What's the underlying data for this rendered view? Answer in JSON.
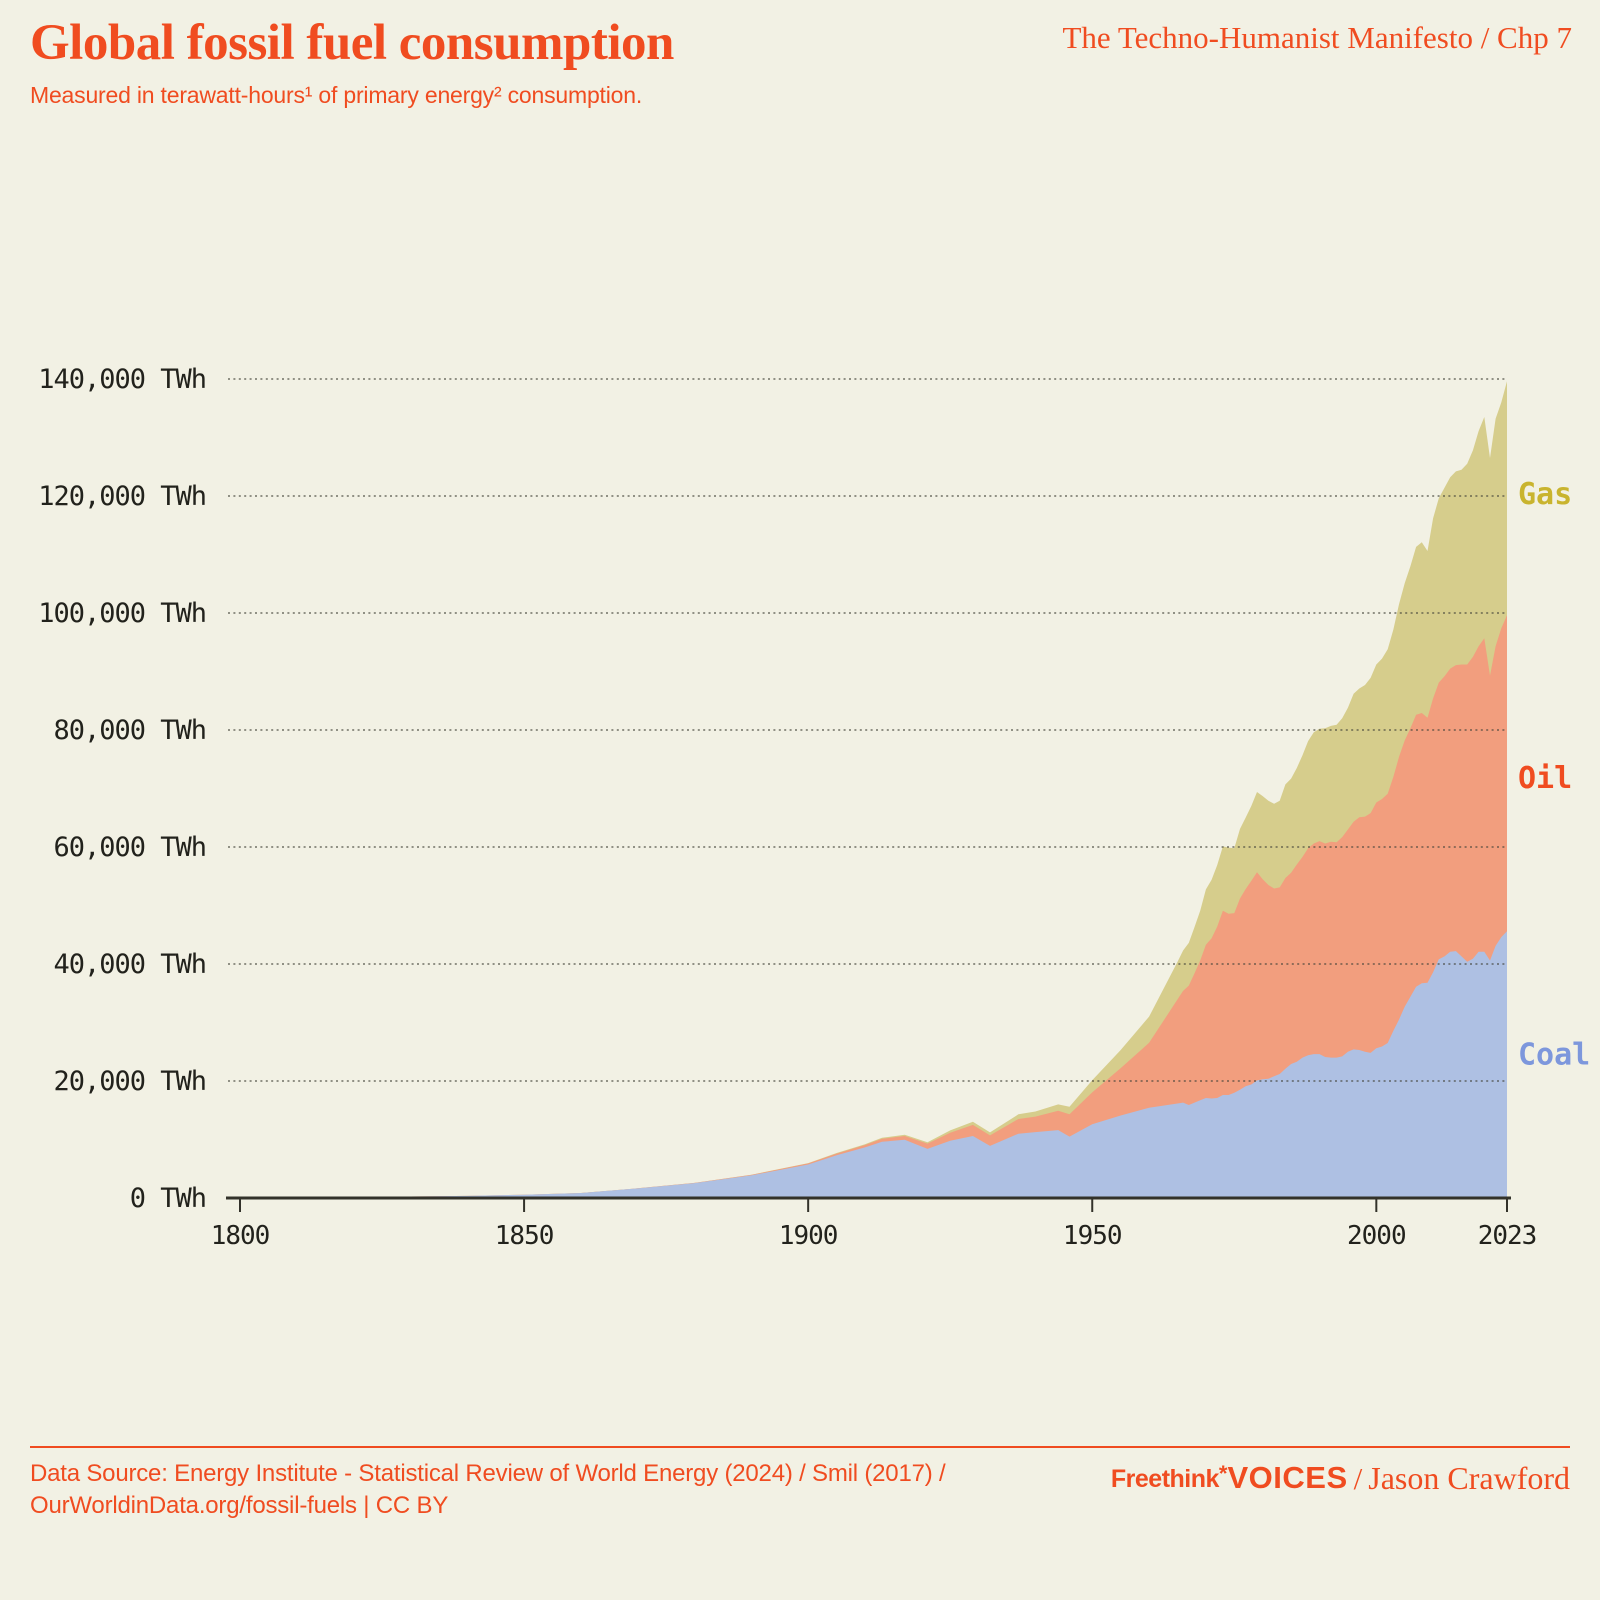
{
  "page": {
    "background_color": "#f2f1e4",
    "accent_color": "#f04c20"
  },
  "header": {
    "title": "Global fossil fuel consumption",
    "subtitle": "Measured in terawatt-hours¹ of primary energy² consumption.",
    "chapter_ref": "The Techno-Humanist Manifesto / Chp 7"
  },
  "footer": {
    "source_line1": "Data Source: Energy Institute - Statistical Review of World Energy (2024) / Smil (2017) /",
    "source_line2": "OurWorldinData.org/fossil-fuels | CC BY",
    "brand": "Freethink",
    "brand_mark": "*",
    "brand_voices": "VOICES",
    "separator": "/",
    "author": "Jason Crawford"
  },
  "chart_data": {
    "type": "area",
    "stacked": true,
    "title": "Global fossil fuel consumption",
    "unit": "TWh",
    "grid": "dotted-horizontal",
    "legend_position": "right-edge-labels",
    "x_axis": {
      "min": 1800,
      "max": 2023,
      "ticks": [
        {
          "value": 1800,
          "label": "1800"
        },
        {
          "value": 1850,
          "label": "1850"
        },
        {
          "value": 1900,
          "label": "1900"
        },
        {
          "value": 1950,
          "label": "1950"
        },
        {
          "value": 2000,
          "label": "2000"
        },
        {
          "value": 2023,
          "label": "2023"
        }
      ]
    },
    "y_axis": {
      "min": 0,
      "max": 140000,
      "ticks": [
        {
          "value": 0,
          "label": "0 TWh"
        },
        {
          "value": 20000,
          "label": "20,000 TWh"
        },
        {
          "value": 40000,
          "label": "40,000 TWh"
        },
        {
          "value": 60000,
          "label": "60,000 TWh"
        },
        {
          "value": 80000,
          "label": "80,000 TWh"
        },
        {
          "value": 100000,
          "label": "100,000 TWh"
        },
        {
          "value": 120000,
          "label": "120,000 TWh"
        },
        {
          "value": 140000,
          "label": "140,000 TWh"
        }
      ]
    },
    "axis_color": "#33322a",
    "grid_color": "#44443a",
    "tick_label_color": "#22221c",
    "years": [
      1800,
      1810,
      1820,
      1830,
      1840,
      1850,
      1860,
      1870,
      1880,
      1890,
      1900,
      1905,
      1910,
      1913,
      1917,
      1921,
      1925,
      1929,
      1932,
      1937,
      1940,
      1944,
      1946,
      1950,
      1955,
      1960,
      1965,
      1966,
      1967,
      1968,
      1969,
      1970,
      1971,
      1972,
      1973,
      1974,
      1975,
      1976,
      1977,
      1978,
      1979,
      1980,
      1981,
      1982,
      1983,
      1984,
      1985,
      1986,
      1987,
      1988,
      1989,
      1990,
      1991,
      1992,
      1993,
      1994,
      1995,
      1996,
      1997,
      1998,
      1999,
      2000,
      2001,
      2002,
      2003,
      2004,
      2005,
      2006,
      2007,
      2008,
      2009,
      2010,
      2011,
      2012,
      2013,
      2014,
      2015,
      2016,
      2017,
      2018,
      2019,
      2020,
      2021,
      2022,
      2023
    ],
    "series": [
      {
        "name": "Coal",
        "fill_color": "#aec0e3",
        "label_color": "#7d97dc",
        "label_value": 24500,
        "values": [
          97,
          128,
          153,
          264,
          356,
          569,
          851,
          1642,
          2542,
          3856,
          5728,
          7300,
          8656,
          9600,
          9950,
          8400,
          9800,
          10600,
          8900,
          11000,
          11261,
          11600,
          10500,
          12603,
          14100,
          15442,
          16151,
          16300,
          15900,
          16300,
          16700,
          17100,
          17000,
          17100,
          17600,
          17600,
          18000,
          18500,
          19100,
          19400,
          20100,
          20300,
          20400,
          20800,
          21200,
          22100,
          22900,
          23300,
          24000,
          24400,
          24600,
          24600,
          24100,
          24000,
          24000,
          24200,
          25000,
          25400,
          25300,
          25000,
          24800,
          25600,
          25900,
          26500,
          28600,
          30500,
          32700,
          34400,
          36100,
          36700,
          36800,
          38600,
          40800,
          41300,
          42100,
          42200,
          41300,
          40400,
          40900,
          42100,
          42100,
          40600,
          43100,
          44600,
          45600
        ]
      },
      {
        "name": "Oil",
        "fill_color": "#f29e7e",
        "label_color": "#f04c20",
        "label_value": 71800,
        "values": [
          0,
          0,
          0,
          0,
          0,
          0,
          1,
          9,
          33,
          89,
          181,
          290,
          397,
          520,
          650,
          900,
          1350,
          1900,
          1800,
          2500,
          2655,
          3300,
          3800,
          5444,
          8100,
          11096,
          17800,
          19100,
          20400,
          22100,
          23900,
          26200,
          27400,
          29300,
          31500,
          31000,
          30700,
          32700,
          33700,
          34800,
          35600,
          34200,
          33100,
          32100,
          31900,
          32600,
          32700,
          33700,
          34300,
          35400,
          36000,
          36400,
          36500,
          36900,
          36800,
          37500,
          38000,
          38900,
          39800,
          40200,
          41000,
          42000,
          42300,
          42600,
          43400,
          44900,
          45500,
          45900,
          46500,
          46200,
          45300,
          46800,
          47300,
          47900,
          48400,
          48900,
          49900,
          50800,
          51600,
          52200,
          53600,
          48700,
          51200,
          52800,
          54000
        ]
      },
      {
        "name": "Gas",
        "fill_color": "#d6cd8c",
        "label_color": "#c9b42e",
        "label_value": 120300,
        "values": [
          0,
          0,
          0,
          0,
          0,
          0,
          0,
          0,
          0,
          33,
          64,
          100,
          141,
          170,
          200,
          234,
          400,
          550,
          520,
          800,
          870,
          1100,
          1300,
          2092,
          3100,
          4472,
          6400,
          6900,
          7300,
          7900,
          8500,
          9450,
          10000,
          10500,
          11000,
          11300,
          11100,
          11900,
          12200,
          12800,
          13700,
          14200,
          14400,
          14500,
          14800,
          16000,
          16100,
          16500,
          17400,
          18300,
          19000,
          19200,
          19700,
          19800,
          20100,
          20300,
          20800,
          21900,
          22000,
          22500,
          23100,
          23600,
          24000,
          24700,
          25200,
          26100,
          26900,
          27700,
          28700,
          29200,
          28500,
          30800,
          31500,
          32200,
          32700,
          33100,
          33300,
          34300,
          35300,
          36800,
          37800,
          37200,
          38900,
          38600,
          40000
        ]
      }
    ]
  }
}
